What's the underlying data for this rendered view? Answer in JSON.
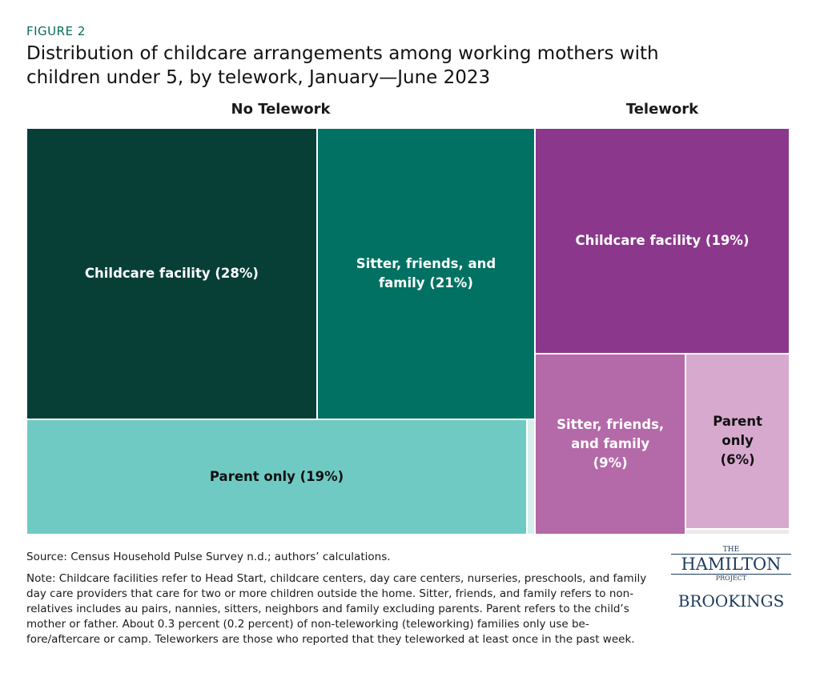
{
  "figure_label": "FIGURE 2",
  "chart_data": {
    "type": "treemap",
    "title": "Distribution of childcare arrangements among working mothers with children under 5, by telework, January—June 2023",
    "groups": [
      {
        "name": "No Telework",
        "values": [
          28,
          21,
          19,
          0.3
        ],
        "value_labels": [
          "Childcare facility (28%)",
          "Sitter, friends, and family (21%)",
          "Parent only (19%)",
          null
        ],
        "colors": [
          "#073f37",
          "#007162",
          "#70cac4",
          "#d6efed"
        ],
        "text_colors": [
          "#ffffff",
          "#ffffff",
          "#111111",
          "#111111"
        ]
      },
      {
        "name": "Telework",
        "values": [
          19,
          9,
          6,
          0.2
        ],
        "value_labels": [
          "Childcare facility (19%)",
          "Sitter, friends, and family (9%)",
          "Parent only (6%)",
          null
        ],
        "colors": [
          "#8b378b",
          "#b469a8",
          "#d8a9cf",
          "#ebebeb"
        ],
        "text_colors": [
          "#ffffff",
          "#ffffff",
          "#111111",
          "#111111"
        ]
      }
    ]
  },
  "source": "Source: Census Household Pulse Survey n.d.; authors’ calculations.",
  "note": "Note: Childcare facilities refer to Head Start, childcare centers, day care centers, nurseries, preschools, and family day care providers that care for two or more children outside the home. Sitter, friends, and family refers to non-relatives includes au pairs, nannies, sitters, neighbors and family excluding parents. Parent refers to the child’s mother or father. About 0.3 percent (0.2 percent) of non-teleworking (teleworking) families only use be-fore/aftercare or camp. Teleworkers are those who reported that they teleworked at least once in the past week.",
  "logo": {
    "the": "THE",
    "hamilton": "HAMILTON",
    "project": "PROJECT",
    "brookings": "BROOKINGS"
  }
}
